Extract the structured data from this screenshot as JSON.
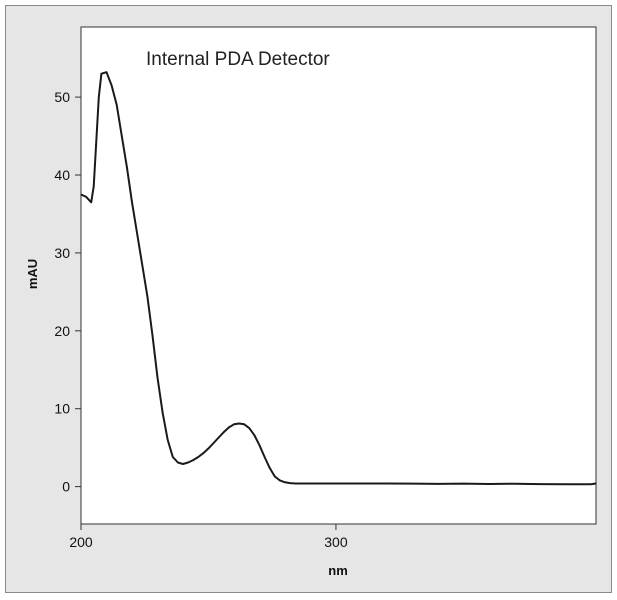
{
  "chart_data": {
    "type": "line",
    "title": "Internal PDA Detector",
    "xlabel": "nm",
    "ylabel": "mAU",
    "xlim": [
      200,
      402
    ],
    "ylim": [
      -4.8,
      59
    ],
    "xticks": [
      200,
      300
    ],
    "yticks": [
      0,
      10,
      20,
      30,
      40,
      50
    ],
    "grid": false,
    "legend": "none",
    "series": [
      {
        "color": "#1a1a1a",
        "x": [
          200,
          202,
          204,
          205,
          207,
          208,
          210,
          212,
          214,
          216,
          218,
          220,
          222,
          224,
          226,
          228,
          230,
          232,
          234,
          236,
          238,
          240,
          242,
          244,
          246,
          248,
          250,
          252,
          254,
          256,
          258,
          260,
          262,
          264,
          266,
          268,
          270,
          272,
          274,
          276,
          278,
          280,
          282,
          284,
          286,
          288,
          290,
          292,
          294,
          296,
          298,
          300,
          310,
          320,
          330,
          340,
          350,
          360,
          370,
          380,
          390,
          400,
          402
        ],
        "y": [
          37.5,
          37.2,
          36.5,
          38.5,
          50.0,
          53.0,
          53.2,
          51.5,
          49.0,
          45.0,
          41.0,
          36.5,
          32.5,
          28.5,
          24.5,
          19.5,
          14.0,
          9.5,
          6.0,
          3.8,
          3.1,
          2.9,
          3.1,
          3.4,
          3.8,
          4.3,
          4.9,
          5.6,
          6.3,
          7.0,
          7.6,
          8.0,
          8.1,
          8.0,
          7.5,
          6.6,
          5.3,
          3.8,
          2.4,
          1.3,
          0.8,
          0.55,
          0.45,
          0.4,
          0.4,
          0.4,
          0.4,
          0.4,
          0.4,
          0.4,
          0.4,
          0.4,
          0.4,
          0.4,
          0.38,
          0.35,
          0.38,
          0.33,
          0.37,
          0.32,
          0.3,
          0.3,
          0.4
        ]
      }
    ]
  }
}
